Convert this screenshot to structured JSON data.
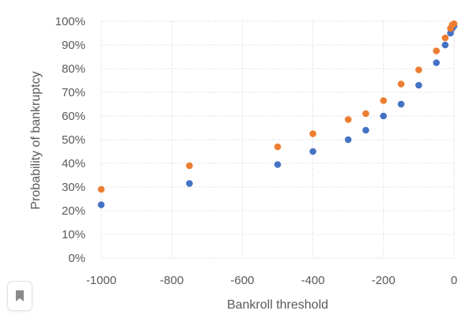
{
  "chart_data": {
    "type": "scatter",
    "title": "",
    "xlabel": "Bankroll threshold",
    "ylabel": "Probability of bankruptcy",
    "xlim": [
      -1000,
      0
    ],
    "ylim": [
      0,
      100
    ],
    "x_ticks": [
      -1000,
      -800,
      -600,
      -400,
      -200,
      0
    ],
    "y_ticks": [
      0,
      10,
      20,
      30,
      40,
      50,
      60,
      70,
      80,
      90,
      100
    ],
    "y_tick_suffix": "%",
    "grid": "dotted",
    "legend": "none",
    "series": [
      {
        "color": "#4472c4",
        "points": [
          [
            -1000,
            22.5
          ],
          [
            -750,
            31.5
          ],
          [
            -500,
            39.5
          ],
          [
            -400,
            45
          ],
          [
            -300,
            50
          ],
          [
            -250,
            54
          ],
          [
            -200,
            60
          ],
          [
            -150,
            65
          ],
          [
            -100,
            73
          ],
          [
            -50,
            82.5
          ],
          [
            -25,
            90
          ],
          [
            -10,
            95
          ],
          [
            -5,
            97
          ],
          [
            0,
            98
          ]
        ]
      },
      {
        "color": "#ed7d31",
        "points": [
          [
            -1000,
            29
          ],
          [
            -750,
            39
          ],
          [
            -500,
            47
          ],
          [
            -400,
            52.5
          ],
          [
            -300,
            58.5
          ],
          [
            -250,
            61
          ],
          [
            -200,
            66.5
          ],
          [
            -150,
            73.5
          ],
          [
            -100,
            79.5
          ],
          [
            -50,
            87.5
          ],
          [
            -25,
            93
          ],
          [
            -10,
            97
          ],
          [
            -5,
            98.5
          ],
          [
            0,
            99
          ]
        ]
      }
    ]
  },
  "bookmark": {
    "icon": "bookmark-icon"
  }
}
